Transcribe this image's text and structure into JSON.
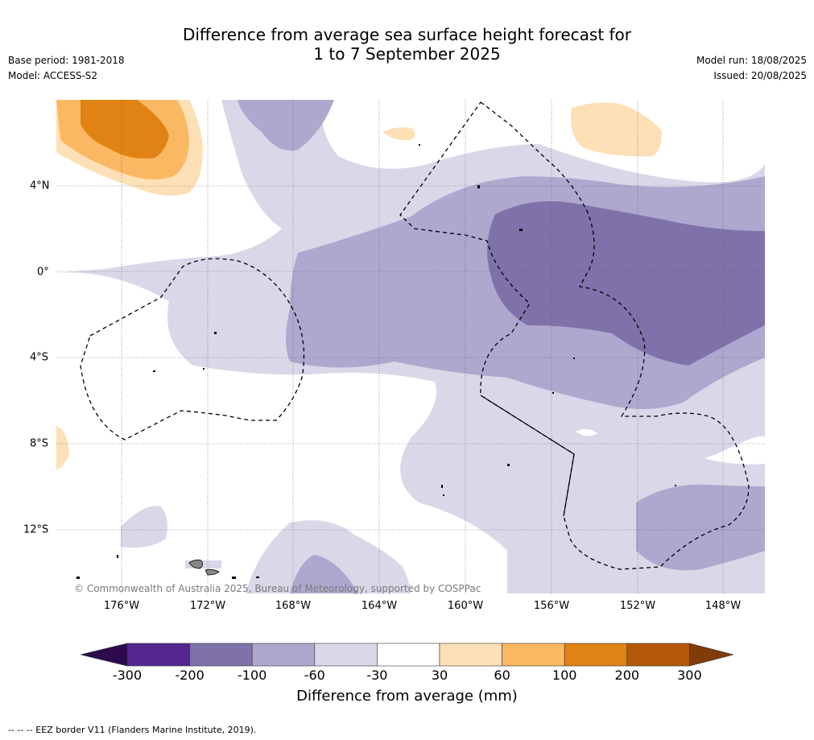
{
  "title_line1": "Difference from average sea surface height forecast for",
  "title_line2": "1 to 7 September 2025",
  "base_period": "Base period: 1981-2018",
  "model": "Model: ACCESS-S2",
  "model_run": "Model run: 18/08/2025",
  "issued": "Issued: 20/08/2025",
  "copyright": "© Commonwealth of Australia 2025, Bureau of Meteorology, supported by COSPPac",
  "lon_labels": [
    "176°W",
    "172°W",
    "168°W",
    "164°W",
    "160°W",
    "156°W",
    "152°W",
    "148°W"
  ],
  "lat_labels": [
    "4°N",
    "0°",
    "4°S",
    "8°S",
    "12°S"
  ],
  "colorbar": {
    "title": "Difference from average (mm)",
    "ticks": [
      "-300",
      "-200",
      "-100",
      "-60",
      "-30",
      "30",
      "60",
      "100",
      "200",
      "300"
    ],
    "colors": [
      "#2d0a4e",
      "#54278f",
      "#7f72aa",
      "#aea8cf",
      "#d8d8e9",
      "#ffffff",
      "#fde0b6",
      "#fbb862",
      "#e08214",
      "#b35806",
      "#7f3b08"
    ]
  },
  "footnote": "-- -- -- EEZ border V11 (Flanders Marine Institute, 2019)."
}
